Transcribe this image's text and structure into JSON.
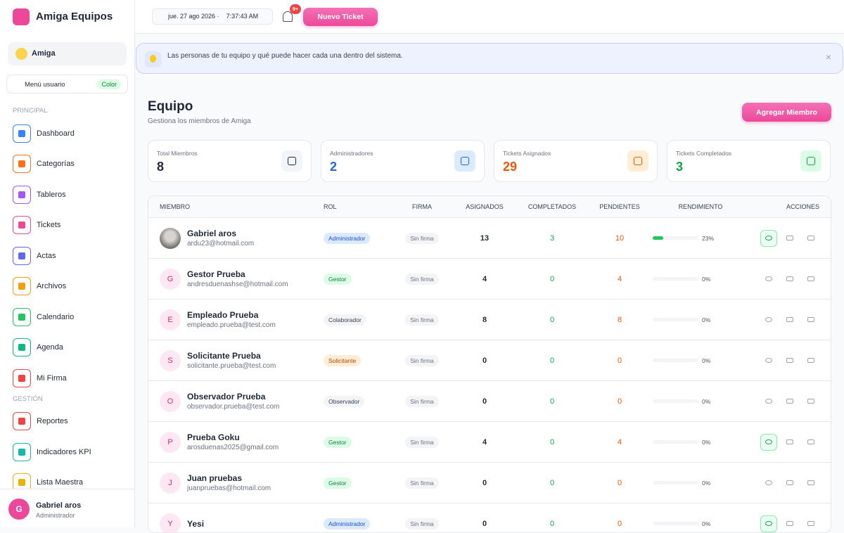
{
  "sidebar": {
    "brand": "Amiga Equipos",
    "org": "Amiga",
    "user_menu": "Menú usuario",
    "user_menu_badge": "Color",
    "sections": [
      {
        "title": "PRINCIPAL",
        "items": [
          {
            "label": "Dashboard",
            "color": "#3b82f6"
          },
          {
            "label": "Categorías",
            "color": "#f97316"
          },
          {
            "label": "Tableros",
            "color": "#a855f7"
          },
          {
            "label": "Tickets",
            "color": "#ec4899"
          },
          {
            "label": "Actas",
            "color": "#6366f1"
          },
          {
            "label": "Archivos",
            "color": "#f59e0b"
          },
          {
            "label": "Calendario",
            "color": "#22c55e"
          },
          {
            "label": "Agenda",
            "color": "#10b981"
          },
          {
            "label": "Mi Firma",
            "color": "#ef4444"
          }
        ]
      },
      {
        "title": "GESTIÓN",
        "items": [
          {
            "label": "Reportes",
            "color": "#ef4444"
          },
          {
            "label": "Indicadores KPI",
            "color": "#14b8a6"
          },
          {
            "label": "Lista Maestra",
            "color": "#eab308"
          }
        ]
      }
    ],
    "user": {
      "initial": "G",
      "name": "Gabriel aros",
      "role": "Administrador"
    }
  },
  "topbar": {
    "date": "jue. 27 ago 2026 ·",
    "time": "7:37:43 AM",
    "notif_badge": "9+",
    "new_ticket": "Nuevo Ticket"
  },
  "banner": "Las personas de tu equipo y qué puede hacer cada una dentro del sistema.",
  "header": {
    "title": "Equipo",
    "subtitle": "Gestiona los miembros de Amiga",
    "add_button": "Agregar Miembro"
  },
  "stats": [
    {
      "label": "Total Miembros",
      "value": 8,
      "color": "#1f2937",
      "bg": "#f1f5f9"
    },
    {
      "label": "Administradores",
      "value": 2,
      "color": "#2563eb",
      "bg": "#dbeafe"
    },
    {
      "label": "Tickets Asignados",
      "value": 29,
      "color": "#ea580c",
      "bg": "#ffedd5"
    },
    {
      "label": "Tickets Completados",
      "value": 3,
      "color": "#16a34a",
      "bg": "#dcfce7"
    }
  ],
  "table": {
    "columns": [
      "MIEMBRO",
      "ROL",
      "FIRMA",
      "ASIGNADOS",
      "COMPLETADOS",
      "PENDIENTES",
      "RENDIMIENTO",
      "ACCIONES"
    ],
    "rows": [
      {
        "name": "Gabriel aros",
        "email": "ardu23@hotmail.com",
        "role": "Administrador",
        "role_color": "#1d4ed8",
        "role_bg": "#dbeafe",
        "signature": "Sin firma",
        "assigned": 13,
        "completed": 3,
        "pending": 10,
        "performance": 23,
        "performance_label": "23%",
        "visible": true
      },
      {
        "initial": "G",
        "name": "Gestor Prueba",
        "email": "andresduenashse@hotmail.com",
        "role": "Gestor",
        "role_color": "#15803d",
        "role_bg": "#dcfce7",
        "signature": "Sin firma",
        "assigned": 4,
        "completed": 0,
        "pending": 4,
        "performance": 0,
        "performance_label": "0%",
        "visible": false
      },
      {
        "initial": "E",
        "name": "Empleado Prueba",
        "email": "empleado.prueba@test.com",
        "role": "Colaborador",
        "role_color": "#374151",
        "role_bg": "#f3f4f6",
        "signature": "Sin firma",
        "assigned": 8,
        "completed": 0,
        "pending": 8,
        "performance": 0,
        "performance_label": "0%",
        "visible": false
      },
      {
        "initial": "S",
        "name": "Solicitante Prueba",
        "email": "solicitante.prueba@test.com",
        "role": "Solicitante",
        "role_color": "#c2410c",
        "role_bg": "#ffedd5",
        "signature": "Sin firma",
        "assigned": 0,
        "completed": 0,
        "pending": 0,
        "performance": 0,
        "performance_label": "0%",
        "visible": false
      },
      {
        "initial": "O",
        "name": "Observador Prueba",
        "email": "observador.prueba@test.com",
        "role": "Observador",
        "role_color": "#374151",
        "role_bg": "#f3f4f6",
        "signature": "Sin firma",
        "assigned": 0,
        "completed": 0,
        "pending": 0,
        "performance": 0,
        "performance_label": "0%",
        "visible": false
      },
      {
        "initial": "P",
        "name": "Prueba Goku",
        "email": "arosduenas2025@gmail.com",
        "role": "Gestor",
        "role_color": "#15803d",
        "role_bg": "#dcfce7",
        "signature": "Sin firma",
        "assigned": 4,
        "completed": 0,
        "pending": 4,
        "performance": 0,
        "performance_label": "0%",
        "visible": true
      },
      {
        "initial": "J",
        "name": "Juan pruebas",
        "email": "juanpruebas@hotmail.com",
        "role": "Gestor",
        "role_color": "#15803d",
        "role_bg": "#dcfce7",
        "signature": "Sin firma",
        "assigned": 0,
        "completed": 0,
        "pending": 0,
        "performance": 0,
        "performance_label": "0%",
        "visible": false
      },
      {
        "initial": "Y",
        "name": "Yesi",
        "role": "Administrador",
        "role_color": "#1d4ed8",
        "role_bg": "#dbeafe",
        "signature": "Sin firma",
        "assigned": 0,
        "completed": 0,
        "pending": 0,
        "performance": 0,
        "performance_label": "0%",
        "visible": true
      }
    ]
  }
}
